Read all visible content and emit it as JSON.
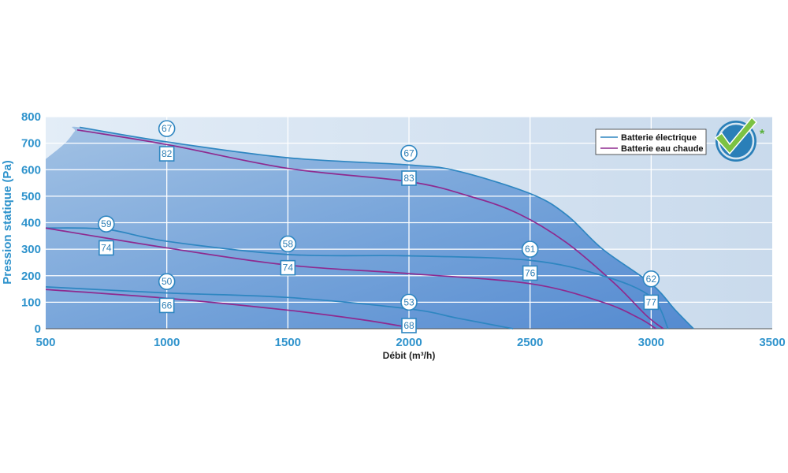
{
  "chart_data": {
    "type": "line",
    "title": "",
    "xlabel": "Débit (m³/h)",
    "ylabel": "Pression statique (Pa)",
    "xlim": [
      500,
      3500
    ],
    "ylim": [
      0,
      800
    ],
    "x_ticks": [
      "500",
      "1000",
      "1500",
      "2000",
      "2500",
      "3000",
      "3500"
    ],
    "y_ticks": [
      "0",
      "100",
      "200",
      "300",
      "400",
      "500",
      "600",
      "700",
      "800"
    ],
    "grid": true,
    "legend_position": "top-right",
    "legend": [
      {
        "label": "Batterie électrique",
        "color": "#2e86c1"
      },
      {
        "label": "Batterie eau chaude",
        "color": "#8e2a8f"
      }
    ],
    "operating_area": [
      [
        500,
        640
      ],
      [
        580,
        700
      ],
      [
        620,
        745
      ],
      [
        640,
        760
      ],
      [
        1000,
        705
      ],
      [
        1500,
        645
      ],
      [
        2000,
        618
      ],
      [
        2200,
        595
      ],
      [
        2500,
        510
      ],
      [
        2650,
        430
      ],
      [
        2800,
        300
      ],
      [
        3000,
        170
      ],
      [
        3100,
        70
      ],
      [
        3175,
        0
      ]
    ],
    "series": [
      {
        "group": "electric",
        "points": [
          [
            640,
            760
          ],
          [
            1000,
            705
          ],
          [
            1500,
            645
          ],
          [
            2000,
            618
          ],
          [
            2200,
            595
          ],
          [
            2500,
            510
          ],
          [
            2650,
            430
          ],
          [
            2800,
            300
          ],
          [
            3000,
            170
          ],
          [
            3100,
            70
          ],
          [
            3175,
            0
          ]
        ]
      },
      {
        "group": "hot_water",
        "points": [
          [
            630,
            750
          ],
          [
            1000,
            695
          ],
          [
            1500,
            605
          ],
          [
            2000,
            555
          ],
          [
            2250,
            500
          ],
          [
            2450,
            435
          ],
          [
            2650,
            325
          ],
          [
            2850,
            170
          ],
          [
            2980,
            50
          ],
          [
            3050,
            0
          ]
        ]
      },
      {
        "group": "electric",
        "points": [
          [
            500,
            380
          ],
          [
            750,
            375
          ],
          [
            1000,
            330
          ],
          [
            1500,
            280
          ],
          [
            2000,
            275
          ],
          [
            2500,
            258
          ],
          [
            2800,
            200
          ],
          [
            3000,
            120
          ],
          [
            3070,
            0
          ]
        ]
      },
      {
        "group": "hot_water",
        "points": [
          [
            500,
            380
          ],
          [
            1000,
            305
          ],
          [
            1500,
            240
          ],
          [
            2000,
            208
          ],
          [
            2500,
            170
          ],
          [
            2800,
            100
          ],
          [
            2950,
            40
          ],
          [
            3020,
            0
          ]
        ]
      },
      {
        "group": "electric",
        "points": [
          [
            500,
            158
          ],
          [
            1000,
            135
          ],
          [
            1500,
            118
          ],
          [
            2000,
            75
          ],
          [
            2200,
            40
          ],
          [
            2430,
            0
          ]
        ]
      },
      {
        "group": "hot_water",
        "points": [
          [
            500,
            148
          ],
          [
            1000,
            115
          ],
          [
            1500,
            70
          ],
          [
            1800,
            35
          ],
          [
            2000,
            5
          ]
        ]
      }
    ],
    "annotations": [
      {
        "shape": "circle",
        "text": "67",
        "x": 1000,
        "y": 755
      },
      {
        "shape": "square",
        "text": "82",
        "x": 1000,
        "y": 660
      },
      {
        "shape": "circle",
        "text": "67",
        "x": 2000,
        "y": 662
      },
      {
        "shape": "square",
        "text": "83",
        "x": 2000,
        "y": 568
      },
      {
        "shape": "circle",
        "text": "59",
        "x": 750,
        "y": 395
      },
      {
        "shape": "square",
        "text": "74",
        "x": 750,
        "y": 305
      },
      {
        "shape": "circle",
        "text": "58",
        "x": 1500,
        "y": 320
      },
      {
        "shape": "square",
        "text": "74",
        "x": 1500,
        "y": 230
      },
      {
        "shape": "circle",
        "text": "61",
        "x": 2500,
        "y": 300
      },
      {
        "shape": "square",
        "text": "76",
        "x": 2500,
        "y": 210
      },
      {
        "shape": "circle",
        "text": "62",
        "x": 3000,
        "y": 188
      },
      {
        "shape": "square",
        "text": "77",
        "x": 3000,
        "y": 100
      },
      {
        "shape": "circle",
        "text": "50",
        "x": 1000,
        "y": 178
      },
      {
        "shape": "square",
        "text": "66",
        "x": 1000,
        "y": 88
      },
      {
        "shape": "circle",
        "text": "53",
        "x": 2000,
        "y": 100
      },
      {
        "shape": "square",
        "text": "68",
        "x": 2000,
        "y": 12
      }
    ]
  },
  "badge": {
    "asterisk": "*"
  }
}
